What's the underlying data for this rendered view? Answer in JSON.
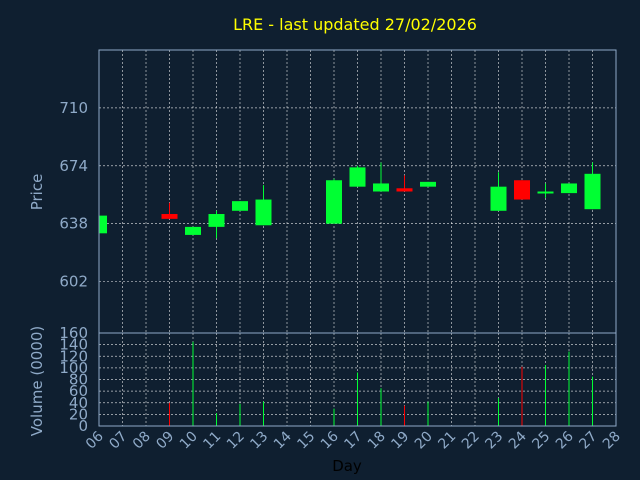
{
  "chart_data": {
    "type": "candlestick",
    "title": "LRE - last updated 27/02/2026",
    "ylabel_price": "Price",
    "ylabel_volume": "Volume (0000)",
    "xlabel": "Day",
    "price_ylim": [
      570,
      746
    ],
    "price_ticks": [
      602,
      638,
      674,
      710
    ],
    "volume_ylim": [
      0,
      160
    ],
    "volume_ticks": [
      0,
      20,
      40,
      60,
      80,
      100,
      120,
      140,
      160
    ],
    "x_ticks": [
      "06",
      "07",
      "08",
      "09",
      "10",
      "11",
      "12",
      "13",
      "14",
      "15",
      "16",
      "17",
      "18",
      "19",
      "20",
      "21",
      "22",
      "23",
      "24",
      "25",
      "26",
      "27",
      "28"
    ],
    "colors": {
      "up": "#00ff33",
      "down": "#ff0000",
      "background": "#0f1f30",
      "title": "#ffff00",
      "axis": "#8faac8"
    },
    "candles": [
      {
        "day": "06",
        "open": 632,
        "high": 643,
        "low": 632,
        "close": 643,
        "volume": 0
      },
      {
        "day": "09",
        "open": 644,
        "high": 651,
        "low": 641,
        "close": 641,
        "volume": 40
      },
      {
        "day": "10",
        "open": 631,
        "high": 636,
        "low": 631,
        "close": 636,
        "volume": 145
      },
      {
        "day": "11",
        "open": 636,
        "high": 646,
        "low": 629,
        "close": 644,
        "volume": 22
      },
      {
        "day": "12",
        "open": 646,
        "high": 652,
        "low": 646,
        "close": 652,
        "volume": 38
      },
      {
        "day": "13",
        "open": 637,
        "high": 662,
        "low": 637,
        "close": 653,
        "volume": 42
      },
      {
        "day": "16",
        "open": 638,
        "high": 666,
        "low": 638,
        "close": 665,
        "volume": 30
      },
      {
        "day": "17",
        "open": 661,
        "high": 674,
        "low": 661,
        "close": 673,
        "volume": 92
      },
      {
        "day": "18",
        "open": 658,
        "high": 676,
        "low": 658,
        "close": 663,
        "volume": 65
      },
      {
        "day": "19",
        "open": 660,
        "high": 668,
        "low": 658,
        "close": 658,
        "volume": 35
      },
      {
        "day": "20",
        "open": 661,
        "high": 664,
        "low": 661,
        "close": 664,
        "volume": 42
      },
      {
        "day": "23",
        "open": 646,
        "high": 670,
        "low": 646,
        "close": 661,
        "volume": 48
      },
      {
        "day": "24",
        "open": 665,
        "high": 665,
        "low": 653,
        "close": 653,
        "volume": 102
      },
      {
        "day": "25",
        "open": 657,
        "high": 663,
        "low": 654,
        "close": 658,
        "volume": 105
      },
      {
        "day": "26",
        "open": 657,
        "high": 663,
        "low": 657,
        "close": 663,
        "volume": 128
      },
      {
        "day": "27",
        "open": 647,
        "high": 676,
        "low": 647,
        "close": 669,
        "volume": 85
      }
    ]
  }
}
